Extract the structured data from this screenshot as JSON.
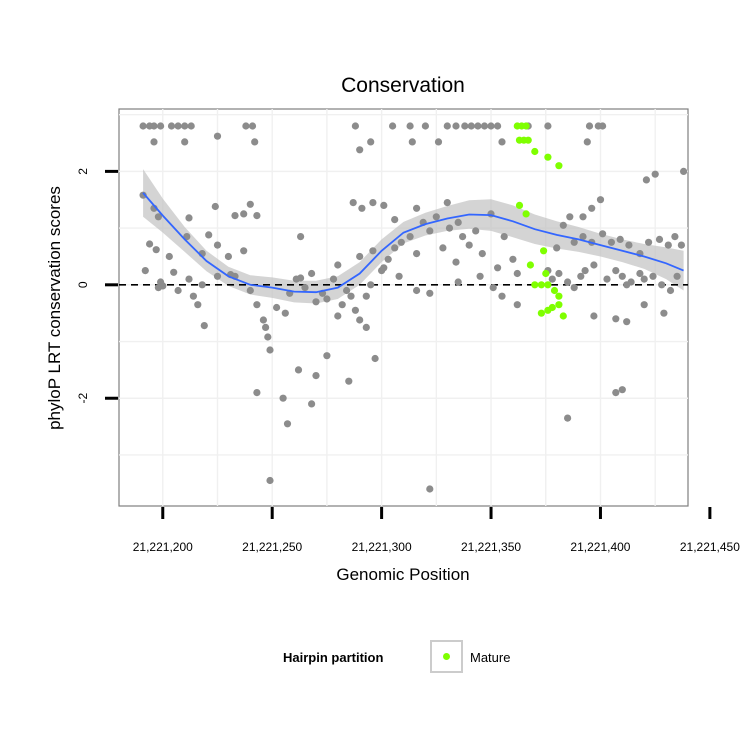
{
  "chart_data": {
    "type": "scatter",
    "title": "Conservation",
    "xlabel": "Genomic Position",
    "ylabel": "phyloP LRT conservation scores",
    "xlim": [
      21221180,
      21221440
    ],
    "ylim": [
      -3.9,
      3.1
    ],
    "x_ticks": [
      21221200,
      21221250,
      21221300,
      21221350,
      21221400,
      21221450
    ],
    "x_tick_labels": [
      "21,221,200",
      "21,221,250",
      "21,221,300",
      "21,221,350",
      "21,221,400",
      "21,221,450"
    ],
    "y_ticks": [
      -2,
      0,
      2
    ],
    "y_tick_labels": [
      "-2",
      "0",
      "2"
    ],
    "grid": true,
    "reference_line": {
      "y": 0,
      "style": "dashed"
    },
    "legend": {
      "title": "Hairpin partition",
      "entries": [
        {
          "label": "Mature",
          "color": "#7fff00"
        }
      ],
      "position": "bottom"
    },
    "colors": {
      "points": "#8c8c8c",
      "mature": "#7fff00",
      "smooth_line": "#3366ff",
      "ribbon": "#bdbdbd"
    },
    "series": [
      {
        "kind": "points",
        "points": [
          [
            21221191,
            2.8
          ],
          [
            21221194,
            2.8
          ],
          [
            21221196,
            2.8
          ],
          [
            21221199,
            2.8
          ],
          [
            21221204,
            2.8
          ],
          [
            21221207,
            2.8
          ],
          [
            21221210,
            2.8
          ],
          [
            21221213,
            2.8
          ],
          [
            21221238,
            2.8
          ],
          [
            21221241,
            2.8
          ],
          [
            21221288,
            2.8
          ],
          [
            21221305,
            2.8
          ],
          [
            21221313,
            2.8
          ],
          [
            21221320,
            2.8
          ],
          [
            21221330,
            2.8
          ],
          [
            21221334,
            2.8
          ],
          [
            21221338,
            2.8
          ],
          [
            21221341,
            2.8
          ],
          [
            21221344,
            2.8
          ],
          [
            21221347,
            2.8
          ],
          [
            21221350,
            2.8
          ],
          [
            21221353,
            2.8
          ],
          [
            21221367,
            2.8
          ],
          [
            21221376,
            2.8
          ],
          [
            21221395,
            2.8
          ],
          [
            21221399,
            2.8
          ],
          [
            21221401,
            2.8
          ],
          [
            21221196,
            2.52
          ],
          [
            21221210,
            2.52
          ],
          [
            21221225,
            2.62
          ],
          [
            21221242,
            2.52
          ],
          [
            21221295,
            2.52
          ],
          [
            21221314,
            2.52
          ],
          [
            21221326,
            2.52
          ],
          [
            21221355,
            2.52
          ],
          [
            21221394,
            2.52
          ],
          [
            21221290,
            2.38
          ],
          [
            21221191,
            1.58
          ],
          [
            21221196,
            1.35
          ],
          [
            21221198,
            1.2
          ],
          [
            21221212,
            1.18
          ],
          [
            21221224,
            1.38
          ],
          [
            21221233,
            1.22
          ],
          [
            21221237,
            1.25
          ],
          [
            21221240,
            1.42
          ],
          [
            21221243,
            1.22
          ],
          [
            21221192,
            0.25
          ],
          [
            21221194,
            0.72
          ],
          [
            21221197,
            0.62
          ],
          [
            21221203,
            0.5
          ],
          [
            21221205,
            0.22
          ],
          [
            21221211,
            0.85
          ],
          [
            21221218,
            0.55
          ],
          [
            21221221,
            0.88
          ],
          [
            21221225,
            0.7
          ],
          [
            21221230,
            0.5
          ],
          [
            21221237,
            0.6
          ],
          [
            21221199,
            0.05
          ],
          [
            21221212,
            0.1
          ],
          [
            21221218,
            0.0
          ],
          [
            21221225,
            0.15
          ],
          [
            21221231,
            0.18
          ],
          [
            21221198,
            -0.05
          ],
          [
            21221200,
            -0.02
          ],
          [
            21221207,
            -0.1
          ],
          [
            21221214,
            -0.2
          ],
          [
            21221216,
            -0.35
          ],
          [
            21221219,
            -0.72
          ],
          [
            21221233,
            0.15
          ],
          [
            21221240,
            -0.1
          ],
          [
            21221243,
            -0.35
          ],
          [
            21221246,
            -0.62
          ],
          [
            21221247,
            -0.75
          ],
          [
            21221248,
            -0.92
          ],
          [
            21221249,
            -1.15
          ],
          [
            21221252,
            -0.4
          ],
          [
            21221256,
            -0.5
          ],
          [
            21221258,
            -0.15
          ],
          [
            21221261,
            0.1
          ],
          [
            21221263,
            0.12
          ],
          [
            21221265,
            -0.05
          ],
          [
            21221268,
            0.2
          ],
          [
            21221270,
            -0.3
          ],
          [
            21221273,
            -0.15
          ],
          [
            21221275,
            -0.25
          ],
          [
            21221278,
            0.1
          ],
          [
            21221280,
            -0.55
          ],
          [
            21221282,
            -0.35
          ],
          [
            21221284,
            -0.1
          ],
          [
            21221286,
            -0.2
          ],
          [
            21221288,
            -0.45
          ],
          [
            21221290,
            -0.62
          ],
          [
            21221293,
            -0.2
          ],
          [
            21221295,
            0.0
          ],
          [
            21221300,
            0.25
          ],
          [
            21221303,
            0.45
          ],
          [
            21221306,
            0.65
          ],
          [
            21221309,
            0.75
          ],
          [
            21221313,
            0.85
          ],
          [
            21221316,
            0.55
          ],
          [
            21221319,
            1.1
          ],
          [
            21221322,
            0.95
          ],
          [
            21221325,
            1.2
          ],
          [
            21221328,
            0.65
          ],
          [
            21221331,
            1.0
          ],
          [
            21221334,
            0.4
          ],
          [
            21221337,
            0.85
          ],
          [
            21221340,
            0.7
          ],
          [
            21221343,
            0.95
          ],
          [
            21221346,
            0.55
          ],
          [
            21221350,
            1.25
          ],
          [
            21221353,
            0.3
          ],
          [
            21221356,
            0.85
          ],
          [
            21221360,
            0.45
          ],
          [
            21221362,
            0.2
          ],
          [
            21221280,
            0.35
          ],
          [
            21221290,
            0.5
          ],
          [
            21221296,
            0.6
          ],
          [
            21221301,
            0.3
          ],
          [
            21221308,
            0.15
          ],
          [
            21221316,
            -0.1
          ],
          [
            21221322,
            -0.15
          ],
          [
            21221335,
            0.05
          ],
          [
            21221345,
            0.15
          ],
          [
            21221351,
            -0.05
          ],
          [
            21221355,
            -0.2
          ],
          [
            21221362,
            -0.35
          ],
          [
            21221243,
            -1.9
          ],
          [
            21221255,
            -2.0
          ],
          [
            21221257,
            -2.45
          ],
          [
            21221262,
            -1.5
          ],
          [
            21221268,
            -2.1
          ],
          [
            21221270,
            -1.6
          ],
          [
            21221275,
            -1.25
          ],
          [
            21221285,
            -1.7
          ],
          [
            21221293,
            -0.75
          ],
          [
            21221297,
            -1.3
          ],
          [
            21221249,
            -3.45
          ],
          [
            21221322,
            -3.6
          ],
          [
            21221263,
            0.85
          ],
          [
            21221287,
            1.45
          ],
          [
            21221291,
            1.35
          ],
          [
            21221296,
            1.45
          ],
          [
            21221301,
            1.4
          ],
          [
            21221306,
            1.15
          ],
          [
            21221316,
            1.35
          ],
          [
            21221330,
            1.45
          ],
          [
            21221335,
            1.1
          ],
          [
            21221376,
            0.25
          ],
          [
            21221378,
            0.1
          ],
          [
            21221381,
            0.2
          ],
          [
            21221385,
            0.05
          ],
          [
            21221388,
            -0.05
          ],
          [
            21221391,
            0.15
          ],
          [
            21221393,
            0.25
          ],
          [
            21221397,
            0.35
          ],
          [
            21221403,
            0.1
          ],
          [
            21221407,
            0.25
          ],
          [
            21221410,
            0.15
          ],
          [
            21221414,
            0.05
          ],
          [
            21221418,
            0.2
          ],
          [
            21221420,
            0.1
          ],
          [
            21221424,
            0.15
          ],
          [
            21221428,
            0.0
          ],
          [
            21221432,
            -0.1
          ],
          [
            21221435,
            0.15
          ],
          [
            21221380,
            0.65
          ],
          [
            21221388,
            0.75
          ],
          [
            21221392,
            0.85
          ],
          [
            21221396,
            0.75
          ],
          [
            21221401,
            0.9
          ],
          [
            21221405,
            0.75
          ],
          [
            21221409,
            0.8
          ],
          [
            21221413,
            0.7
          ],
          [
            21221418,
            0.55
          ],
          [
            21221422,
            0.75
          ],
          [
            21221427,
            0.8
          ],
          [
            21221431,
            0.7
          ],
          [
            21221434,
            0.85
          ],
          [
            21221437,
            0.7
          ],
          [
            21221383,
            1.05
          ],
          [
            21221386,
            1.2
          ],
          [
            21221392,
            1.2
          ],
          [
            21221396,
            1.35
          ],
          [
            21221400,
            1.5
          ],
          [
            21221385,
            -2.35
          ],
          [
            21221407,
            -1.9
          ],
          [
            21221410,
            -1.85
          ],
          [
            21221407,
            -0.6
          ],
          [
            21221412,
            -0.65
          ],
          [
            21221420,
            -0.35
          ],
          [
            21221429,
            -0.5
          ],
          [
            21221397,
            -0.55
          ],
          [
            21221412,
            0.0
          ],
          [
            21221421,
            1.85
          ],
          [
            21221425,
            1.95
          ],
          [
            21221438,
            2.0
          ]
        ]
      },
      {
        "kind": "points",
        "name": "Mature",
        "points": [
          [
            21221362,
            2.8
          ],
          [
            21221364,
            2.8
          ],
          [
            21221366,
            2.8
          ],
          [
            21221363,
            2.55
          ],
          [
            21221365,
            2.55
          ],
          [
            21221367,
            2.55
          ],
          [
            21221370,
            2.35
          ],
          [
            21221376,
            2.25
          ],
          [
            21221381,
            2.1
          ],
          [
            21221363,
            1.4
          ],
          [
            21221366,
            1.25
          ],
          [
            21221374,
            0.6
          ],
          [
            21221375,
            0.2
          ],
          [
            21221368,
            0.35
          ],
          [
            21221370,
            0.0
          ],
          [
            21221373,
            0.0
          ],
          [
            21221376,
            0.0
          ],
          [
            21221379,
            -0.1
          ],
          [
            21221381,
            -0.2
          ],
          [
            21221373,
            -0.5
          ],
          [
            21221376,
            -0.45
          ],
          [
            21221378,
            -0.4
          ],
          [
            21221381,
            -0.35
          ],
          [
            21221383,
            -0.55
          ]
        ]
      },
      {
        "kind": "smooth",
        "points": [
          [
            21221191,
            1.62
          ],
          [
            21221200,
            1.22
          ],
          [
            21221210,
            0.8
          ],
          [
            21221220,
            0.42
          ],
          [
            21221230,
            0.15
          ],
          [
            21221240,
            0.0
          ],
          [
            21221250,
            -0.05
          ],
          [
            21221260,
            -0.12
          ],
          [
            21221270,
            -0.13
          ],
          [
            21221280,
            -0.05
          ],
          [
            21221290,
            0.2
          ],
          [
            21221300,
            0.6
          ],
          [
            21221310,
            0.92
          ],
          [
            21221320,
            1.07
          ],
          [
            21221330,
            1.17
          ],
          [
            21221340,
            1.24
          ],
          [
            21221350,
            1.23
          ],
          [
            21221360,
            1.12
          ],
          [
            21221370,
            0.98
          ],
          [
            21221380,
            0.88
          ],
          [
            21221390,
            0.8
          ],
          [
            21221400,
            0.7
          ],
          [
            21221410,
            0.6
          ],
          [
            21221420,
            0.5
          ],
          [
            21221430,
            0.38
          ],
          [
            21221438,
            0.25
          ]
        ],
        "ribbon_half_width": [
          0.42,
          0.3,
          0.22,
          0.18,
          0.17,
          0.17,
          0.18,
          0.19,
          0.2,
          0.2,
          0.2,
          0.2,
          0.19,
          0.2,
          0.22,
          0.25,
          0.28,
          0.28,
          0.26,
          0.24,
          0.22,
          0.2,
          0.2,
          0.22,
          0.28,
          0.35
        ]
      }
    ]
  }
}
